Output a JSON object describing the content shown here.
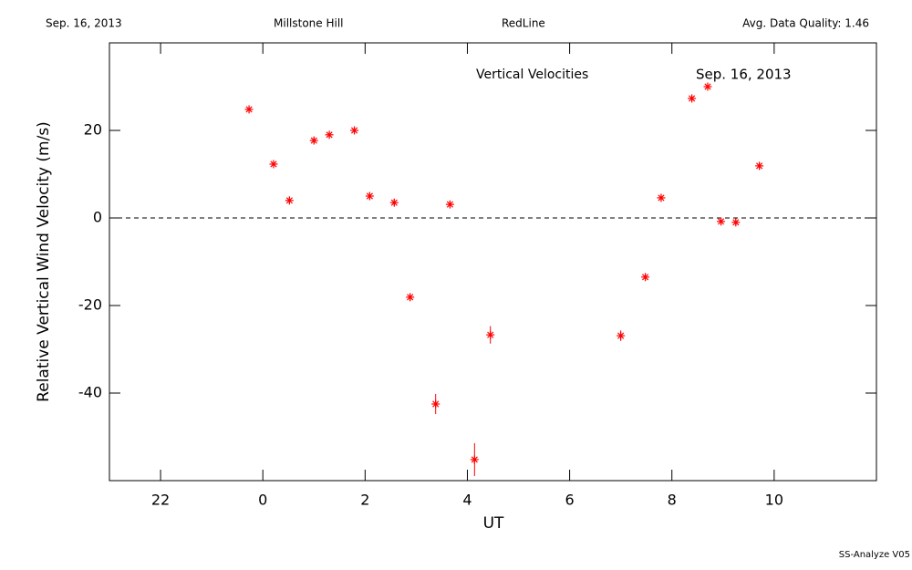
{
  "header": {
    "date": "Sep. 16, 2013",
    "site": "Millstone Hill",
    "instrument": "RedLine",
    "quality": "Avg. Data Quality: 1.46"
  },
  "footer": "SS-Analyze V05",
  "chart_data": {
    "type": "scatter",
    "title": "Vertical Velocities",
    "subtitle": "Sep. 16, 2013",
    "x_label": "UT",
    "y_label": "Relative Vertical Wind Velocity (m/s)",
    "color": "#ff0000",
    "x": [
      -0.27,
      0.21,
      0.52,
      1.0,
      1.3,
      1.79,
      2.09,
      2.57,
      2.88,
      3.38,
      3.66,
      4.14,
      4.45,
      7.0,
      7.48,
      7.79,
      8.39,
      8.7,
      8.96,
      9.25,
      9.71
    ],
    "values": [
      24.8,
      12.3,
      4.0,
      17.7,
      19.0,
      20.0,
      5.0,
      3.5,
      -18.1,
      -42.5,
      3.1,
      -55.2,
      -26.7,
      -26.9,
      -13.5,
      4.6,
      27.3,
      30.0,
      -0.8,
      -1.0,
      11.9
    ],
    "errors": [
      0.8,
      0.8,
      0.8,
      0.8,
      0.8,
      0.8,
      0.8,
      0.8,
      0.8,
      2.3,
      0.8,
      3.75,
      2.0,
      1.2,
      0.8,
      0.8,
      0.8,
      0.8,
      0.8,
      0.8,
      0.8
    ],
    "reference_line": 0,
    "xlim": [
      -3,
      12
    ],
    "ylim": [
      -60,
      40
    ],
    "xticks": [
      {
        "value": -2,
        "label": "22"
      },
      0,
      2,
      4,
      6,
      8,
      10
    ],
    "yticks": [
      -40,
      -20,
      0,
      20
    ]
  }
}
